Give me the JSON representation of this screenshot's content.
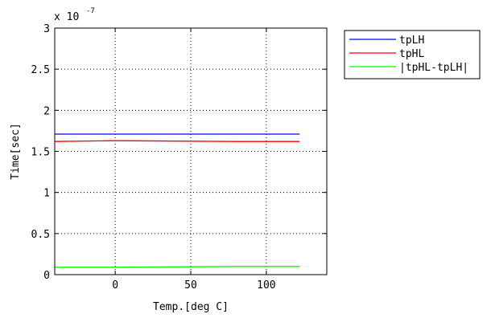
{
  "chart_data": {
    "type": "line",
    "title": "",
    "xlabel": "Temp.[deg C]",
    "ylabel": "Time[sec]",
    "y_multiplier": {
      "base": "x 10",
      "exponent": "-7"
    },
    "xlim": [
      -40,
      140
    ],
    "ylim": [
      0,
      3
    ],
    "x_ticks": [
      0,
      50,
      100
    ],
    "x_tick_labels": [
      "0",
      "50",
      "100"
    ],
    "y_ticks": [
      0,
      0.5,
      1,
      1.5,
      2,
      2.5,
      3
    ],
    "y_tick_labels": [
      "0",
      "0.5",
      "1",
      "1.5",
      "2",
      "2.5",
      "3"
    ],
    "grid": true,
    "grid_style": "dotted",
    "legend_position": "outside-top-right",
    "x": [
      -40,
      0,
      80,
      122
    ],
    "series": [
      {
        "name": "tpLH",
        "color": "#0000ff",
        "values": [
          1.71,
          1.71,
          1.71,
          1.71
        ]
      },
      {
        "name": "tpHL",
        "color": "#ff0000",
        "values": [
          1.62,
          1.63,
          1.62,
          1.62
        ]
      },
      {
        "name": "|tpHL-tpLH|",
        "color": "#00ff00",
        "values": [
          0.09,
          0.09,
          0.1,
          0.1
        ]
      }
    ]
  }
}
